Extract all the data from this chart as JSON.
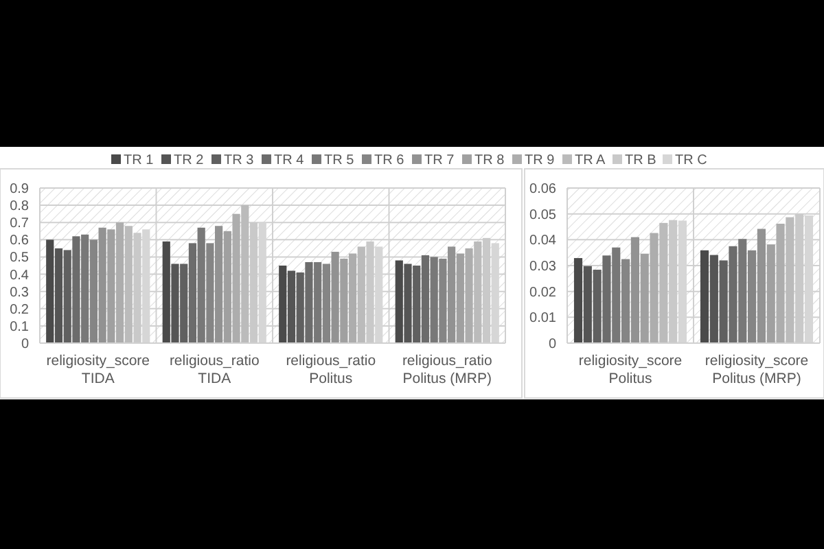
{
  "chart_data": [
    {
      "type": "bar",
      "categories": [
        "religiosity_score TIDA",
        "religious_ratio TIDA",
        "religious_ratio Politus",
        "religious_ratio Politus (MRP)"
      ],
      "ylim": [
        0,
        0.9
      ],
      "yticks": [
        0,
        0.1,
        0.2,
        0.3,
        0.4,
        0.5,
        0.6,
        0.7,
        0.8,
        0.9
      ],
      "grid": true,
      "legend": "top",
      "series": [
        {
          "name": "TR 1",
          "color": "#4a4a4a",
          "values": [
            0.6,
            0.59,
            0.45,
            0.48
          ]
        },
        {
          "name": "TR 2",
          "color": "#555555",
          "values": [
            0.55,
            0.46,
            0.42,
            0.46
          ]
        },
        {
          "name": "TR 3",
          "color": "#606060",
          "values": [
            0.54,
            0.46,
            0.41,
            0.45
          ]
        },
        {
          "name": "TR 4",
          "color": "#6c6c6c",
          "values": [
            0.62,
            0.58,
            0.47,
            0.51
          ]
        },
        {
          "name": "TR 5",
          "color": "#787878",
          "values": [
            0.63,
            0.67,
            0.47,
            0.5
          ]
        },
        {
          "name": "TR 6",
          "color": "#858585",
          "values": [
            0.6,
            0.58,
            0.46,
            0.49
          ]
        },
        {
          "name": "TR 7",
          "color": "#929292",
          "values": [
            0.67,
            0.68,
            0.53,
            0.56
          ]
        },
        {
          "name": "TR 8",
          "color": "#a0a0a0",
          "values": [
            0.66,
            0.65,
            0.49,
            0.52
          ]
        },
        {
          "name": "TR 9",
          "color": "#adadad",
          "values": [
            0.7,
            0.75,
            0.52,
            0.55
          ]
        },
        {
          "name": "TR A",
          "color": "#bbbbbb",
          "values": [
            0.68,
            0.8,
            0.56,
            0.59
          ]
        },
        {
          "name": "TR B",
          "color": "#c9c9c9",
          "values": [
            0.64,
            0.7,
            0.59,
            0.61
          ]
        },
        {
          "name": "TR C",
          "color": "#d6d6d6",
          "values": [
            0.66,
            0.7,
            0.56,
            0.58
          ]
        }
      ]
    },
    {
      "type": "bar",
      "categories": [
        "religiosity_score Politus",
        "religiosity_score Politus (MRP)"
      ],
      "ylim": [
        0,
        0.06
      ],
      "yticks": [
        0,
        0.01,
        0.02,
        0.03,
        0.04,
        0.05,
        0.06
      ],
      "grid": true,
      "series": [
        {
          "color": "#4a4a4a",
          "values": [
            0.0329,
            0.0359
          ]
        },
        {
          "color": "#555555",
          "values": [
            0.0298,
            0.0341
          ]
        },
        {
          "color": "#606060",
          "values": [
            0.0284,
            0.032
          ]
        },
        {
          "color": "#6c6c6c",
          "values": [
            0.0339,
            0.0375
          ]
        },
        {
          "color": "#787878",
          "values": [
            0.037,
            0.0403
          ]
        },
        {
          "color": "#858585",
          "values": [
            0.0325,
            0.0359
          ]
        },
        {
          "color": "#929292",
          "values": [
            0.041,
            0.0442
          ]
        },
        {
          "color": "#a0a0a0",
          "values": [
            0.0346,
            0.0382
          ]
        },
        {
          "color": "#adadad",
          "values": [
            0.0426,
            0.0462
          ]
        },
        {
          "color": "#bbbbbb",
          "values": [
            0.0465,
            0.0487
          ]
        },
        {
          "color": "#c9c9c9",
          "values": [
            0.0476,
            0.0499
          ]
        },
        {
          "color": "#d6d6d6",
          "values": [
            0.0474,
            0.0494
          ]
        }
      ]
    }
  ]
}
